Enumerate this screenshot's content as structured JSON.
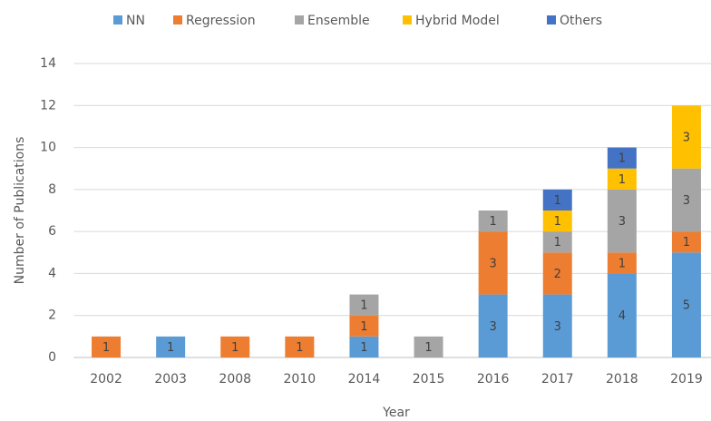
{
  "chart_data": {
    "type": "bar",
    "stacked": true,
    "x_label": "Year",
    "y_label": "Number of Publications",
    "categories": [
      "2002",
      "2003",
      "2008",
      "2010",
      "2014",
      "2015",
      "2016",
      "2017",
      "2018",
      "2019"
    ],
    "series": [
      {
        "name": "NN",
        "color": "#5b9bd5",
        "values": [
          0,
          1,
          0,
          0,
          1,
          0,
          3,
          3,
          4,
          5
        ]
      },
      {
        "name": "Regression",
        "color": "#ed7d31",
        "values": [
          1,
          0,
          1,
          1,
          1,
          0,
          3,
          2,
          1,
          1
        ]
      },
      {
        "name": "Ensemble",
        "color": "#a5a5a5",
        "values": [
          0,
          0,
          0,
          0,
          1,
          1,
          1,
          1,
          3,
          3
        ]
      },
      {
        "name": "Hybrid Model",
        "color": "#ffc000",
        "values": [
          0,
          0,
          0,
          0,
          0,
          0,
          0,
          1,
          1,
          3
        ]
      },
      {
        "name": "Others",
        "color": "#4472c4",
        "values": [
          0,
          0,
          0,
          0,
          0,
          0,
          0,
          1,
          1,
          0
        ]
      }
    ],
    "ylim": [
      0,
      14
    ],
    "yticks": [
      0,
      2,
      4,
      6,
      8,
      10,
      12,
      14
    ],
    "grid": true,
    "legend": "top"
  }
}
